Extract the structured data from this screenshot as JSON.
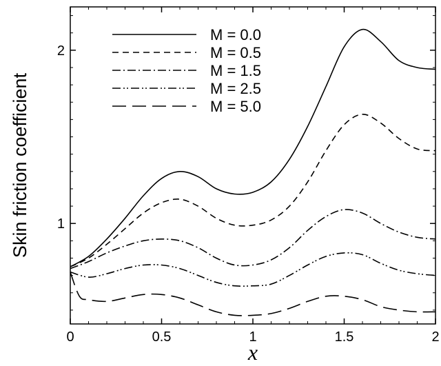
{
  "chart_data": {
    "type": "line",
    "title": "",
    "xlabel": "x",
    "ylabel": "Skin friction coefficient",
    "xlim": [
      0,
      2
    ],
    "ylim": [
      0.42,
      2.25
    ],
    "xticks": [
      0,
      0.5,
      1,
      1.5,
      2
    ],
    "xtick_labels": [
      "0",
      "0.5",
      "1",
      "1.5",
      "2"
    ],
    "yticks": [
      1,
      2
    ],
    "ytick_labels": [
      "1",
      "2"
    ],
    "grid": false,
    "legend_position": "top-left",
    "series": [
      {
        "name": "M = 0.0",
        "dash": "solid",
        "x": [
          0,
          0.1,
          0.2,
          0.3,
          0.4,
          0.5,
          0.6,
          0.7,
          0.8,
          0.9,
          1.0,
          1.1,
          1.2,
          1.3,
          1.4,
          1.5,
          1.6,
          1.7,
          1.8,
          1.9,
          2.0
        ],
        "y": [
          0.75,
          0.81,
          0.91,
          1.03,
          1.16,
          1.26,
          1.3,
          1.27,
          1.2,
          1.17,
          1.18,
          1.24,
          1.37,
          1.56,
          1.79,
          2.02,
          2.12,
          2.05,
          1.94,
          1.9,
          1.89
        ]
      },
      {
        "name": "M = 0.5",
        "dash": "dashed",
        "x": [
          0,
          0.1,
          0.2,
          0.3,
          0.4,
          0.5,
          0.6,
          0.7,
          0.8,
          0.9,
          1.0,
          1.1,
          1.2,
          1.3,
          1.4,
          1.5,
          1.6,
          1.7,
          1.8,
          1.9,
          2.0
        ],
        "y": [
          0.75,
          0.8,
          0.88,
          0.97,
          1.06,
          1.12,
          1.14,
          1.1,
          1.03,
          0.99,
          0.99,
          1.02,
          1.1,
          1.24,
          1.42,
          1.57,
          1.63,
          1.58,
          1.49,
          1.43,
          1.42
        ]
      },
      {
        "name": "M = 1.5",
        "dash": "dashdot",
        "x": [
          0,
          0.1,
          0.2,
          0.3,
          0.4,
          0.5,
          0.6,
          0.7,
          0.8,
          0.9,
          1.0,
          1.1,
          1.2,
          1.3,
          1.4,
          1.5,
          1.6,
          1.7,
          1.8,
          1.9,
          2.0
        ],
        "y": [
          0.74,
          0.78,
          0.83,
          0.87,
          0.9,
          0.91,
          0.9,
          0.86,
          0.8,
          0.76,
          0.76,
          0.79,
          0.86,
          0.96,
          1.04,
          1.08,
          1.06,
          1.0,
          0.95,
          0.92,
          0.91
        ]
      },
      {
        "name": "M = 2.5",
        "dash": "dashdotdot",
        "x": [
          0,
          0.1,
          0.2,
          0.3,
          0.4,
          0.5,
          0.6,
          0.7,
          0.8,
          0.9,
          1.0,
          1.1,
          1.2,
          1.3,
          1.4,
          1.5,
          1.6,
          1.7,
          1.8,
          1.9,
          2.0
        ],
        "y": [
          0.72,
          0.69,
          0.71,
          0.74,
          0.76,
          0.76,
          0.74,
          0.7,
          0.66,
          0.64,
          0.64,
          0.65,
          0.7,
          0.76,
          0.81,
          0.83,
          0.82,
          0.77,
          0.73,
          0.71,
          0.7
        ]
      },
      {
        "name": "M = 5.0",
        "dash": "longdash",
        "x": [
          0,
          0.05,
          0.1,
          0.2,
          0.3,
          0.4,
          0.5,
          0.6,
          0.7,
          0.8,
          0.9,
          1.0,
          1.1,
          1.2,
          1.3,
          1.4,
          1.5,
          1.6,
          1.7,
          1.8,
          1.9,
          2.0
        ],
        "y": [
          0.72,
          0.58,
          0.56,
          0.55,
          0.57,
          0.59,
          0.59,
          0.57,
          0.53,
          0.49,
          0.47,
          0.47,
          0.48,
          0.51,
          0.55,
          0.58,
          0.58,
          0.56,
          0.52,
          0.5,
          0.49,
          0.49
        ]
      }
    ]
  }
}
